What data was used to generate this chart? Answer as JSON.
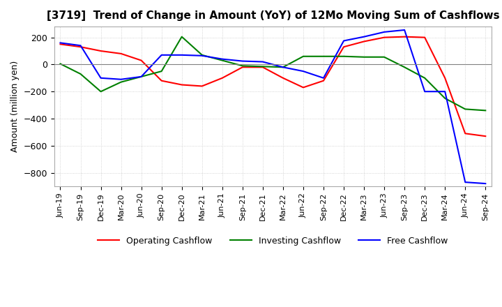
{
  "title": "[3719]  Trend of Change in Amount (YoY) of 12Mo Moving Sum of Cashflows",
  "ylabel": "Amount (million yen)",
  "ylim": [
    -900,
    280
  ],
  "yticks": [
    200,
    0,
    -200,
    -400,
    -600,
    -800
  ],
  "x_labels": [
    "Jun-19",
    "Sep-19",
    "Dec-19",
    "Mar-20",
    "Jun-20",
    "Sep-20",
    "Dec-20",
    "Mar-21",
    "Jun-21",
    "Sep-21",
    "Dec-21",
    "Mar-22",
    "Jun-22",
    "Sep-22",
    "Dec-22",
    "Mar-23",
    "Jun-23",
    "Sep-23",
    "Dec-23",
    "Mar-24",
    "Jun-24",
    "Sep-24"
  ],
  "operating": [
    150,
    130,
    100,
    80,
    30,
    -120,
    -150,
    -160,
    -100,
    -20,
    -20,
    -100,
    -170,
    -120,
    130,
    170,
    200,
    205,
    200,
    -100,
    -510,
    -530
  ],
  "investing": [
    5,
    -70,
    -200,
    -130,
    -90,
    -50,
    205,
    70,
    30,
    -10,
    -15,
    -20,
    60,
    60,
    60,
    55,
    55,
    -20,
    -100,
    -250,
    -330,
    -340
  ],
  "free": [
    160,
    140,
    -100,
    -110,
    -90,
    70,
    70,
    65,
    40,
    25,
    20,
    -20,
    -50,
    -100,
    175,
    205,
    240,
    255,
    -200,
    -200,
    -870,
    -880
  ],
  "operating_color": "#ff0000",
  "investing_color": "#008000",
  "free_color": "#0000ff",
  "bg_color": "#ffffff",
  "grid_color": "#c8c8c8"
}
